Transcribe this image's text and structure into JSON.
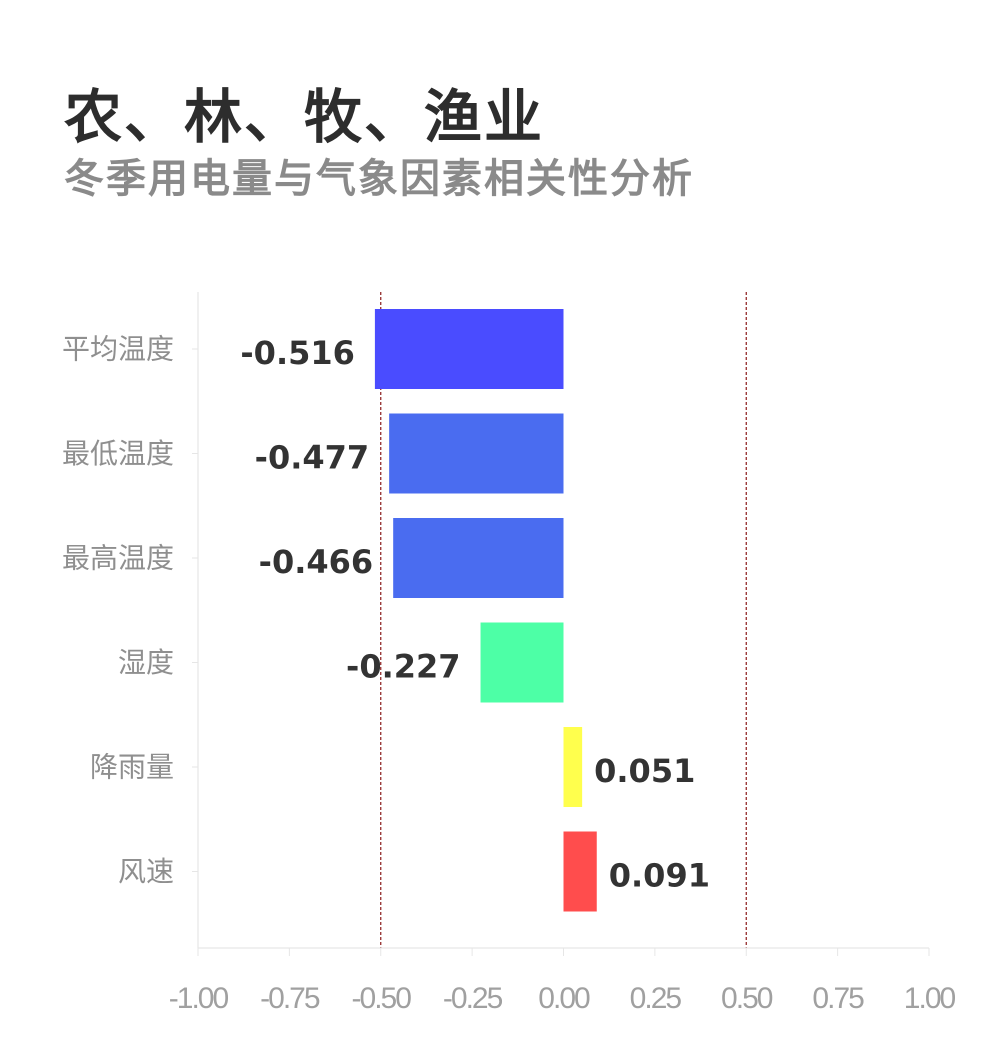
{
  "header": {
    "title": "农、林、牧、渔业",
    "subtitle": "冬季用电量与气象因素相关性分析"
  },
  "chart_data": {
    "type": "bar",
    "orientation": "horizontal",
    "categories": [
      "平均温度",
      "最低温度",
      "最高温度",
      "湿度",
      "降雨量",
      "风速"
    ],
    "values": [
      -0.516,
      -0.477,
      -0.466,
      -0.227,
      0.051,
      0.091
    ],
    "value_labels": [
      "-0.516",
      "-0.477",
      "-0.466",
      "-0.227",
      "0.051",
      "0.091"
    ],
    "bar_colors": [
      "#4a4cff",
      "#4a6cf0",
      "#4a6cf0",
      "#4dffa6",
      "#ffff4d",
      "#ff4d4d"
    ],
    "xlim": [
      -1.0,
      1.0
    ],
    "x_ticks": [
      -1.0,
      -0.75,
      -0.5,
      -0.25,
      0.0,
      0.25,
      0.5,
      0.75,
      1.0
    ],
    "x_tick_labels": [
      "-1.00",
      "-0.75",
      "-0.50",
      "-0.25",
      "0.00",
      "0.25",
      "0.50",
      "0.75",
      "1.00"
    ],
    "reference_lines": [
      -0.5,
      0.5
    ],
    "reference_line_color": "#8b1a1a",
    "grid": false,
    "legend": "none",
    "xlabel": "",
    "ylabel": ""
  }
}
